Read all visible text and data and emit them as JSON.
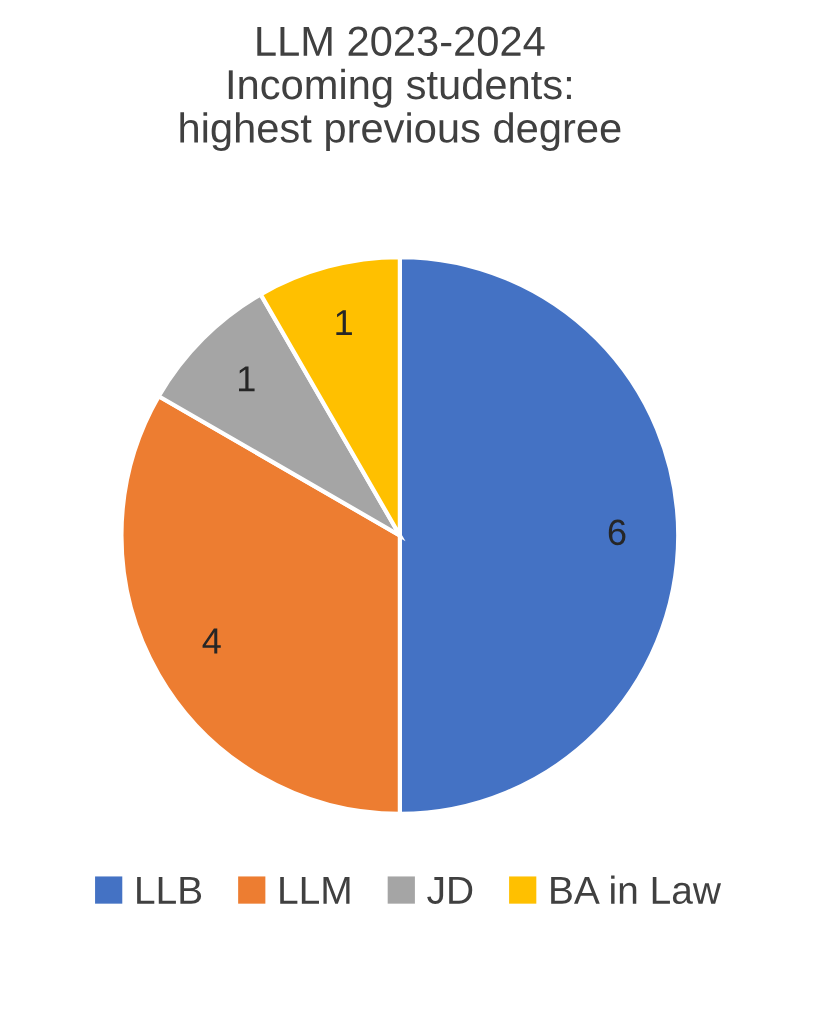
{
  "chart_data": {
    "type": "pie",
    "title": "LLM 2023-2024\nIncoming students:\nhighest previous degree",
    "categories": [
      "LLB",
      "LLM",
      "JD",
      "BA in Law"
    ],
    "values": [
      6,
      4,
      1,
      1
    ],
    "colors": [
      "#4472c4",
      "#ed7d31",
      "#a5a5a5",
      "#ffc000"
    ],
    "data_labels": true,
    "legend": "bottom"
  }
}
